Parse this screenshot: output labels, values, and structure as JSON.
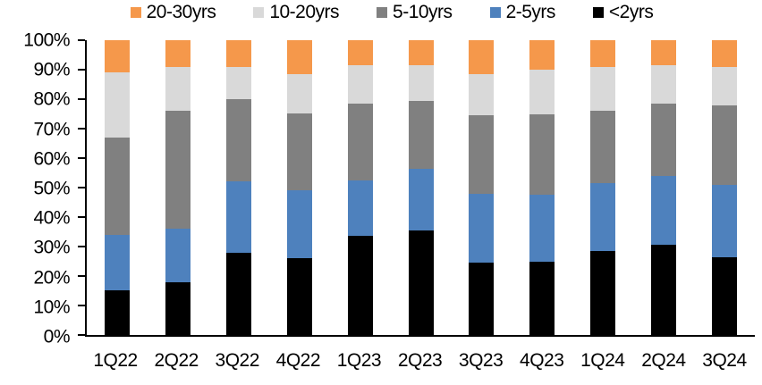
{
  "chart_data": {
    "type": "bar",
    "variant": "stacked-100-percent",
    "title": "",
    "xlabel": "",
    "ylabel": "",
    "ylim": [
      0,
      100
    ],
    "grid": false,
    "legend_position": "top",
    "categories": [
      "1Q22",
      "2Q22",
      "3Q22",
      "4Q22",
      "1Q23",
      "2Q23",
      "3Q23",
      "4Q23",
      "1Q24",
      "2Q24",
      "3Q24"
    ],
    "series": [
      {
        "name": "<2yrs",
        "color": "#000000",
        "values": [
          15,
          18,
          28,
          26,
          33.5,
          35.5,
          24.5,
          25,
          28.5,
          30.5,
          26.5
        ]
      },
      {
        "name": "2-5yrs",
        "color": "#4E81BD",
        "values": [
          19,
          18,
          24,
          23,
          19,
          21,
          23.5,
          22.5,
          23,
          23.5,
          24.5
        ]
      },
      {
        "name": "5-10yrs",
        "color": "#808080",
        "values": [
          33,
          40,
          28,
          26,
          26,
          23,
          26.5,
          27.5,
          24.5,
          24.5,
          27
        ]
      },
      {
        "name": "10-20yrs",
        "color": "#D9D9D9",
        "values": [
          22,
          15,
          11,
          13.5,
          13,
          12,
          14,
          15,
          15,
          13,
          13
        ]
      },
      {
        "name": "20-30yrs",
        "color": "#F5984B",
        "values": [
          11,
          9,
          9,
          11.5,
          8.5,
          8.5,
          11.5,
          10,
          9,
          8.5,
          9
        ]
      }
    ],
    "legend_order": [
      "20-30yrs",
      "10-20yrs",
      "5-10yrs",
      "2-5yrs",
      "<2yrs"
    ],
    "y_ticks": [
      "100%",
      "90%",
      "80%",
      "70%",
      "60%",
      "50%",
      "40%",
      "30%",
      "20%",
      "10%",
      "0%"
    ],
    "axis_color": "#000000",
    "text_color": "#000000",
    "background_color": "#FFFFFF"
  }
}
